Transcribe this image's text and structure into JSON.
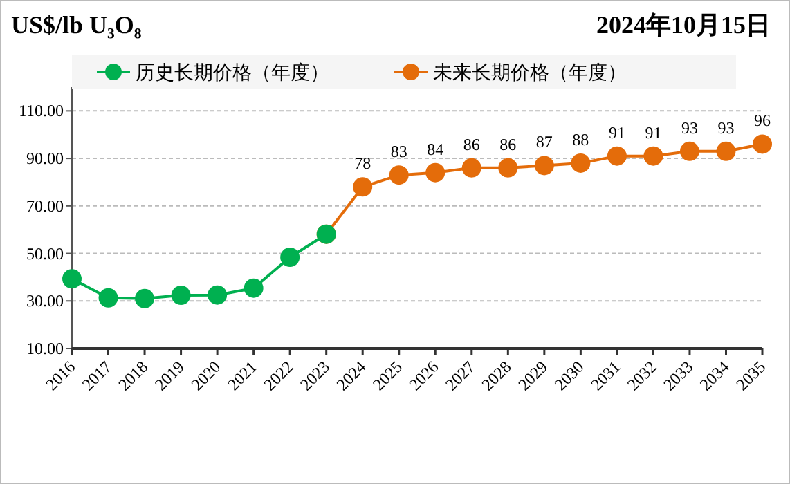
{
  "chart_data": {
    "type": "line",
    "title": "US$/lb U₃O₈",
    "subtitle": "2024年10月15日",
    "categories": [
      "2016",
      "2017",
      "2018",
      "2019",
      "2020",
      "2021",
      "2022",
      "2023",
      "2024",
      "2025",
      "2026",
      "2027",
      "2028",
      "2029",
      "2030",
      "2031",
      "2032",
      "2033",
      "2034",
      "2035"
    ],
    "series": [
      {
        "name": "未来长期价格（年度）",
        "color": "#e46c0a",
        "values": [
          null,
          null,
          null,
          null,
          null,
          null,
          null,
          58.1,
          78,
          83,
          84,
          86,
          86,
          87,
          88,
          91,
          91,
          93,
          93,
          96
        ],
        "value_labels": [
          null,
          null,
          null,
          null,
          null,
          null,
          null,
          null,
          "78",
          "83",
          "84",
          "86",
          "86",
          "87",
          "88",
          "91",
          "91",
          "93",
          "93",
          "96"
        ]
      },
      {
        "name": "历史长期价格（年度）",
        "color": "#00b050",
        "values": [
          39.3,
          31.3,
          31,
          32.4,
          32.5,
          35.4,
          48.4,
          58.1,
          null,
          null,
          null,
          null,
          null,
          null,
          null,
          null,
          null,
          null,
          null,
          null
        ]
      }
    ],
    "ylim": [
      10,
      120
    ],
    "yticks": [
      {
        "value": 10,
        "label": "10.00"
      },
      {
        "value": 30,
        "label": "30.00"
      },
      {
        "value": 50,
        "label": "50.00"
      },
      {
        "value": 70,
        "label": "70.00"
      },
      {
        "value": 90,
        "label": "90.00"
      },
      {
        "value": 110,
        "label": "110.00"
      }
    ],
    "grid": "y",
    "legend": "top",
    "marker": "circle",
    "line_style": "solid"
  }
}
